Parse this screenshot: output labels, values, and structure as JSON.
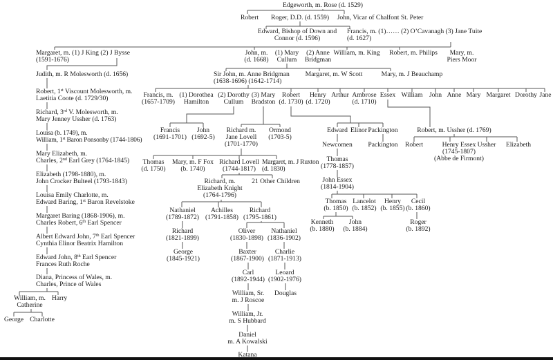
{
  "nodes": [
    {
      "id": "edgeworth",
      "lines": [
        "Edgeworth, m. Rose (d. 1529)"
      ]
    },
    {
      "id": "robert-1",
      "lines": [
        "Robert"
      ]
    },
    {
      "id": "roger",
      "lines": [
        "Roger, D.D. (d. 1559)"
      ]
    },
    {
      "id": "john-vicar",
      "lines": [
        "John, Vicar of Chalfont St. Peter"
      ]
    },
    {
      "id": "edward-bishop",
      "lines": [
        "Edward, Bishop of Down and",
        "Connor (d. 1596)"
      ]
    },
    {
      "id": "francis-1627",
      "lines": [
        "Francis, m. (1)…… (2) O’Cavanagh (3) Jane Tuite",
        "(d. 1627)"
      ]
    },
    {
      "id": "margaret-king",
      "lines": [
        "Margaret, m. (1) J King  (2) J Bysse",
        "(1591-1676)"
      ]
    },
    {
      "id": "john-1668",
      "lines": [
        "John, m.",
        "(d. 1668)"
      ]
    },
    {
      "id": "mary-cullum",
      "lines": [
        "(1) Mary",
        "Cullum"
      ]
    },
    {
      "id": "anne-bridgman",
      "lines": [
        "(2) Anne",
        "Bridgman"
      ]
    },
    {
      "id": "william-king",
      "lines": [
        "William, m. King"
      ]
    },
    {
      "id": "robert-philips",
      "lines": [
        "Robert, m. Philips"
      ]
    },
    {
      "id": "mary-moor",
      "lines": [
        "Mary, m.",
        "Piers Moor"
      ]
    },
    {
      "id": "judith",
      "lines": [
        "Judith, m. R Molesworth (d. 1656)"
      ]
    },
    {
      "id": "robert-viscount",
      "lines": [
        "Robert, 1st Viscount Molesworth, m.",
        "Laetitia Coote (d. 1729/30)"
      ]
    },
    {
      "id": "richard-3rd",
      "lines": [
        "Richard, 3rd V. Molesworth, m.",
        "Mary Jenney Ussher (d. 1763)"
      ]
    },
    {
      "id": "louisa",
      "lines": [
        "Louisa (b. 1749), m.",
        "William, 1st Baron Ponsonby (1744-1806)"
      ]
    },
    {
      "id": "mary-elizabeth",
      "lines": [
        "Mary Elizabeth, m.",
        "Charles, 2nd Earl Grey (1764-1845)"
      ]
    },
    {
      "id": "elizabeth-1798",
      "lines": [
        "Elizabeth (1798-1880), m.",
        "John Crocker Bulteel (1793-1843)"
      ]
    },
    {
      "id": "louisa-emily",
      "lines": [
        "Louisa Emily Charlotte, m.",
        "Edward Baring, 1st Baron Revelstoke"
      ]
    },
    {
      "id": "margaret-baring",
      "lines": [
        "Margaret Baring (1868-1906), m.",
        "Charles Robert, 6th Earl Spencer"
      ]
    },
    {
      "id": "albert-edward",
      "lines": [
        "Albert Edward John, 7th Earl Spencer",
        "Cynthia Elinor Beatrix Hamilton"
      ]
    },
    {
      "id": "edward-john",
      "lines": [
        "Edward John, 8th Earl Spencer",
        "Frances Ruth Roche"
      ]
    },
    {
      "id": "diana",
      "lines": [
        "Diana, Princess of Wales, m.",
        "Charles, Prince of Wales"
      ]
    },
    {
      "id": "william-catherine",
      "lines": [
        "William, m.",
        "Catherine"
      ]
    },
    {
      "id": "harry",
      "lines": [
        "Harry"
      ]
    },
    {
      "id": "george",
      "lines": [
        "George"
      ]
    },
    {
      "id": "charlotte",
      "lines": [
        "Charlotte"
      ]
    },
    {
      "id": "sir-john",
      "lines": [
        "Sir John, m. Anne Bridgman",
        "(1638-1696)  (1642-1714)"
      ]
    },
    {
      "id": "margaret-scott",
      "lines": [
        "Margaret, m. W Scott"
      ]
    },
    {
      "id": "mary-beauchamp",
      "lines": [
        "Mary, m. J Beauchamp"
      ]
    },
    {
      "id": "francis-1657",
      "lines": [
        "Francis, m.",
        "(1657-1709)"
      ]
    },
    {
      "id": "dorothea",
      "lines": [
        "(1) Dorothea",
        "Hamilton"
      ]
    },
    {
      "id": "dorothy",
      "lines": [
        "(2) Dorothy",
        "Cullum"
      ]
    },
    {
      "id": "mary-bradston",
      "lines": [
        "(3) Mary",
        "Bradston"
      ]
    },
    {
      "id": "robert-1730",
      "lines": [
        "Robert",
        "(d. 1730)"
      ]
    },
    {
      "id": "henry-1720",
      "lines": [
        "Henry",
        "(d. 1720)"
      ]
    },
    {
      "id": "arthur",
      "lines": [
        "Arthur"
      ]
    },
    {
      "id": "ambrose",
      "lines": [
        "Ambrose",
        "(d. 1710)"
      ]
    },
    {
      "id": "essex",
      "lines": [
        "Essex"
      ]
    },
    {
      "id": "william-2",
      "lines": [
        "William"
      ]
    },
    {
      "id": "john-2",
      "lines": [
        "John"
      ]
    },
    {
      "id": "anne",
      "lines": [
        "Anne"
      ]
    },
    {
      "id": "mary-2",
      "lines": [
        "Mary"
      ]
    },
    {
      "id": "margaret-2",
      "lines": [
        "Margaret"
      ]
    },
    {
      "id": "dorothy-2",
      "lines": [
        "Dorothy"
      ]
    },
    {
      "id": "jane",
      "lines": [
        "Jane"
      ]
    },
    {
      "id": "francis-1691",
      "lines": [
        "Francis",
        "(1691-1701)"
      ]
    },
    {
      "id": "john-1692",
      "lines": [
        "John",
        "(1692-5)"
      ]
    },
    {
      "id": "richard-lovell-1701",
      "lines": [
        "Richard m.",
        "Jane Lovell",
        "(1701-1770)"
      ]
    },
    {
      "id": "ormond",
      "lines": [
        "Ormond",
        "(1703-5)"
      ]
    },
    {
      "id": "thomas-1750",
      "lines": [
        "Thomas",
        "(d. 1750)"
      ]
    },
    {
      "id": "mary-fox",
      "lines": [
        "Mary, m. F Fox",
        "(b. 1740)"
      ]
    },
    {
      "id": "richard-lovell-1744",
      "lines": [
        "Richard Lovell",
        "(1744-1817)"
      ]
    },
    {
      "id": "margaret-ruxton",
      "lines": [
        "Margaret, m. J Ruxton",
        "(d. 1830)"
      ]
    },
    {
      "id": "richard-knight",
      "lines": [
        "Richard, m.",
        "Elizabeth Knight",
        "(1764-1796)"
      ]
    },
    {
      "id": "other-children",
      "lines": [
        "21 Other Children"
      ]
    },
    {
      "id": "nathaniel-1789",
      "lines": [
        "Nathaniel",
        "(1789-1872)"
      ]
    },
    {
      "id": "achilles",
      "lines": [
        "Achilles",
        "(1791-1858)"
      ]
    },
    {
      "id": "richard-1795",
      "lines": [
        "Richard",
        "(1795-1861)"
      ]
    },
    {
      "id": "richard-1821",
      "lines": [
        "Richard",
        "(1821-1899)"
      ]
    },
    {
      "id": "oliver",
      "lines": [
        "Oliver",
        "(1830-1898)"
      ]
    },
    {
      "id": "nathaniel-1836",
      "lines": [
        "Nathaniel",
        "(1836-1902)"
      ]
    },
    {
      "id": "george-1845",
      "lines": [
        "George",
        "(1845-1921)"
      ]
    },
    {
      "id": "baxter",
      "lines": [
        "Baxter",
        "(1867-1900)"
      ]
    },
    {
      "id": "charlie",
      "lines": [
        "Charlie",
        "(1871-1913)"
      ]
    },
    {
      "id": "carl",
      "lines": [
        "Carl",
        "(1892-1944)"
      ]
    },
    {
      "id": "leoard",
      "lines": [
        "Leoard",
        "(1902-1976)"
      ]
    },
    {
      "id": "william-sr",
      "lines": [
        "William, Sr.",
        "m. J Roscoe"
      ]
    },
    {
      "id": "douglas",
      "lines": [
        "Douglas"
      ]
    },
    {
      "id": "william-jr",
      "lines": [
        "William, Jr.",
        "m. S Hubbard"
      ]
    },
    {
      "id": "daniel",
      "lines": [
        "Daniel",
        "m. A Kowalski"
      ]
    },
    {
      "id": "katana",
      "lines": [
        "Katana"
      ]
    },
    {
      "id": "edward-r",
      "lines": [
        "Edward"
      ]
    },
    {
      "id": "elinor",
      "lines": [
        "Elinor"
      ]
    },
    {
      "id": "packington-1",
      "lines": [
        "Packington"
      ]
    },
    {
      "id": "newcomen",
      "lines": [
        "Newcomen"
      ]
    },
    {
      "id": "packington-2",
      "lines": [
        "Packington"
      ]
    },
    {
      "id": "thomas-1778",
      "lines": [
        "Thomas",
        "(1778-1857)"
      ]
    },
    {
      "id": "john-essex",
      "lines": [
        "John Essex",
        "(1814-1904)"
      ]
    },
    {
      "id": "thomas-1850",
      "lines": [
        "Thomas",
        "(b. 1850)"
      ]
    },
    {
      "id": "lancelot",
      "lines": [
        "Lancelot",
        "(b. 1852)"
      ]
    },
    {
      "id": "henry-1855",
      "lines": [
        "Henry",
        "(b. 1855)"
      ]
    },
    {
      "id": "cecil",
      "lines": [
        "Cecil",
        "(b. 1860)"
      ]
    },
    {
      "id": "kenneth",
      "lines": [
        "Kenneth",
        "(b. 1880)"
      ]
    },
    {
      "id": "john-1884",
      "lines": [
        "John",
        "(b. 1884)"
      ]
    },
    {
      "id": "roger-1892",
      "lines": [
        "Roger",
        "(b. 1892)"
      ]
    },
    {
      "id": "robert-ussher",
      "lines": [
        "Robert, m. Ussher (d. 1769)"
      ]
    },
    {
      "id": "robert-3",
      "lines": [
        "Robert"
      ]
    },
    {
      "id": "henry-essex",
      "lines": [
        "Henry Essex",
        "(1745-1807)",
        "(Abbe de Firmont)"
      ]
    },
    {
      "id": "ussher",
      "lines": [
        "Ussher"
      ]
    },
    {
      "id": "elizabeth-2",
      "lines": [
        "Elizabeth"
      ]
    }
  ]
}
